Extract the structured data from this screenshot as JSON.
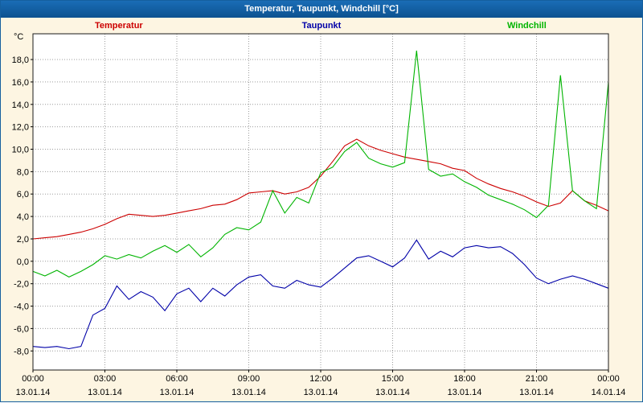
{
  "window": {
    "title": "Temperatur, Taupunkt, Windchill [°C]"
  },
  "legend": [
    {
      "label": "Temperatur",
      "color": "#cc0000"
    },
    {
      "label": "Taupunkt",
      "color": "#0000a8"
    },
    {
      "label": "Windchill",
      "color": "#00b400"
    }
  ],
  "axes": {
    "y_unit": "°C"
  },
  "chart_data": {
    "type": "line",
    "title": "Temperatur, Taupunkt, Windchill [°C]",
    "ylabel": "°C",
    "xlabel": "",
    "xlim": [
      0,
      24
    ],
    "ylim": [
      -9.7,
      20.3
    ],
    "grid": "dotted",
    "grid_color": "#9c9c9c",
    "y_ticks": {
      "values": [
        18,
        16,
        14,
        12,
        10,
        8,
        6,
        4,
        2,
        0,
        -2,
        -4,
        -6,
        -8
      ],
      "labels": [
        "18,0",
        "16,0",
        "14,0",
        "12,0",
        "10,0",
        "8,0",
        "6,0",
        "4,0",
        "2,0",
        "0,0",
        "-2,0",
        "-4,0",
        "-6,0",
        "-8,0"
      ]
    },
    "x_ticks": {
      "hours": [
        0,
        3,
        6,
        9,
        12,
        15,
        18,
        21,
        24
      ],
      "time_labels": [
        "00:00",
        "03:00",
        "06:00",
        "09:00",
        "12:00",
        "15:00",
        "18:00",
        "21:00",
        "00:00"
      ],
      "date_labels": [
        "13.01.14",
        "13.01.14",
        "13.01.14",
        "13.01.14",
        "13.01.14",
        "13.01.14",
        "13.01.14",
        "13.01.14",
        "14.01.14"
      ]
    },
    "x": [
      0,
      0.5,
      1,
      1.5,
      2,
      2.5,
      3,
      3.5,
      4,
      4.5,
      5,
      5.5,
      6,
      6.5,
      7,
      7.5,
      8,
      8.5,
      9,
      9.5,
      10,
      10.5,
      11,
      11.5,
      12,
      12.5,
      13,
      13.5,
      14,
      14.5,
      15,
      15.5,
      16,
      16.5,
      17,
      17.5,
      18,
      18.5,
      19,
      19.5,
      20,
      20.5,
      21,
      21.5,
      22,
      22.5,
      23,
      23.5,
      24
    ],
    "series": [
      {
        "name": "Temperatur",
        "color": "#cc0000",
        "values": [
          2.0,
          2.1,
          2.2,
          2.4,
          2.6,
          2.9,
          3.3,
          3.8,
          4.2,
          4.1,
          4.0,
          4.1,
          4.3,
          4.5,
          4.7,
          5.0,
          5.1,
          5.5,
          6.1,
          6.2,
          6.3,
          6.0,
          6.2,
          6.6,
          7.6,
          8.9,
          10.3,
          10.9,
          10.3,
          9.9,
          9.6,
          9.3,
          9.1,
          8.9,
          8.7,
          8.3,
          8.1,
          7.4,
          6.9,
          6.5,
          6.2,
          5.8,
          5.3,
          4.9,
          5.2,
          6.3,
          5.4,
          5.0,
          4.5
        ]
      },
      {
        "name": "Taupunkt",
        "color": "#0000a8",
        "values": [
          -7.6,
          -7.7,
          -7.6,
          -7.8,
          -7.6,
          -4.8,
          -4.2,
          -2.2,
          -3.4,
          -2.7,
          -3.2,
          -4.4,
          -2.9,
          -2.4,
          -3.6,
          -2.4,
          -3.1,
          -2.1,
          -1.4,
          -1.2,
          -2.2,
          -2.4,
          -1.7,
          -2.1,
          -2.3,
          -1.5,
          -0.6,
          0.3,
          0.5,
          0.0,
          -0.5,
          0.3,
          1.9,
          0.2,
          0.9,
          0.4,
          1.2,
          1.4,
          1.2,
          1.3,
          0.7,
          -0.3,
          -1.5,
          -2.0,
          -1.6,
          -1.3,
          -1.6,
          -2.0,
          -2.4
        ]
      },
      {
        "name": "Windchill",
        "color": "#00b400",
        "values": [
          -0.9,
          -1.3,
          -0.8,
          -1.4,
          -0.9,
          -0.3,
          0.5,
          0.2,
          0.6,
          0.3,
          0.9,
          1.4,
          0.8,
          1.5,
          0.4,
          1.2,
          2.4,
          3.0,
          2.8,
          3.5,
          6.3,
          4.3,
          5.7,
          5.2,
          7.9,
          8.4,
          9.8,
          10.6,
          9.2,
          8.7,
          8.4,
          8.8,
          18.8,
          8.2,
          7.6,
          7.8,
          7.1,
          6.6,
          5.9,
          5.5,
          5.1,
          4.6,
          3.9,
          5.0,
          16.6,
          6.3,
          5.4,
          4.7,
          16.0
        ]
      }
    ]
  }
}
